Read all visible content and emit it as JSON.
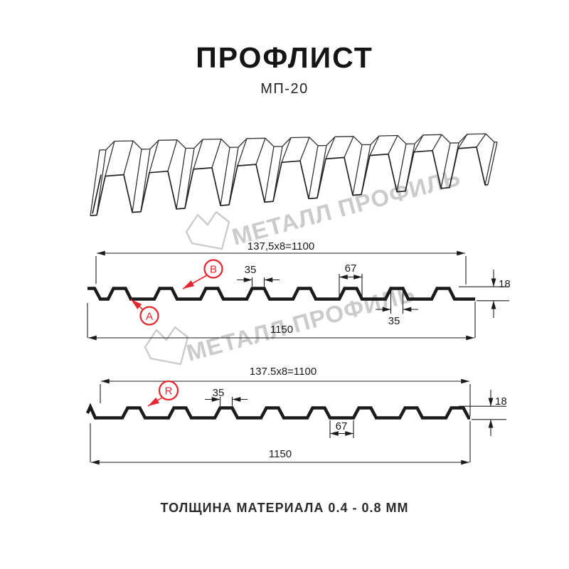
{
  "header": {
    "title": "ПРОФЛИСТ",
    "subtitle": "МП-20"
  },
  "watermark": {
    "text": "МЕТАЛЛ ПРОФИЛЬ"
  },
  "footer": {
    "caption": "ТОЛЩИНА МАТЕРИАЛА 0.4 - 0.8 ММ"
  },
  "colors": {
    "accent_red": "#e4272e",
    "line": "#1b1b1b",
    "watermark_gray": "#cbcbcb"
  },
  "diagram_top": {
    "pitch_dim": "137,5x8=1100",
    "rib_top_dim": "35",
    "rib_base_dim": "67",
    "height_dim": "18",
    "rib_top_dim_bottom": "35",
    "overall_dim": "1150",
    "label_a": "A",
    "label_b": "B"
  },
  "diagram_bottom": {
    "pitch_dim": "137.5x8=1100",
    "rib_top_dim": "35",
    "valley_dim": "67",
    "height_dim": "18",
    "overall_dim": "1150",
    "label_r": "R"
  }
}
